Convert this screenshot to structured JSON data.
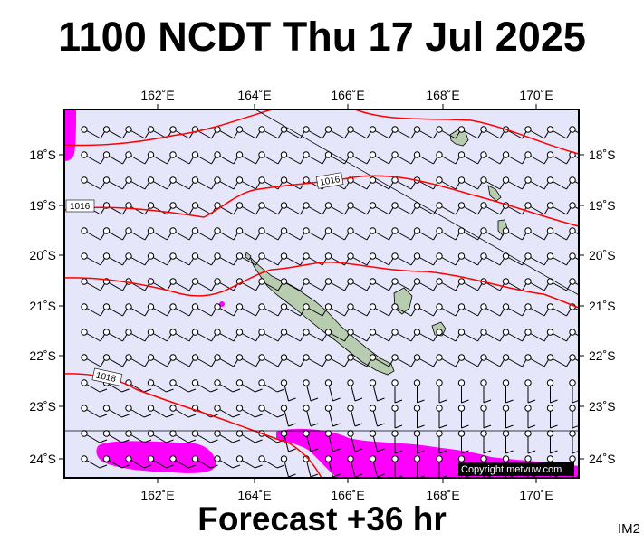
{
  "title": "1100 NCDT Thu 17 Jul 2025",
  "subtitle": "Forecast +36 hr",
  "image_code": "IM2",
  "copyright": "Copyright metvuw.com",
  "map": {
    "lon_range": [
      160.25,
      171
    ],
    "lat_range": [
      -24.4,
      -17.0
    ],
    "lon_ticks": [
      "162˚E",
      "164˚E",
      "166˚E",
      "168˚E",
      "170˚E"
    ],
    "lat_ticks": [
      "18˚S",
      "19˚S",
      "20˚S",
      "21˚S",
      "22˚S",
      "23˚S",
      "24˚S"
    ],
    "isobar_labels": [
      "1016",
      "1016",
      "1018"
    ],
    "colors": {
      "ocean": "#e6e6fb",
      "land": "#b8ccb0",
      "isobar": "#ff0000",
      "rain": "#ff00ff",
      "wind_barb": "#000000"
    }
  }
}
